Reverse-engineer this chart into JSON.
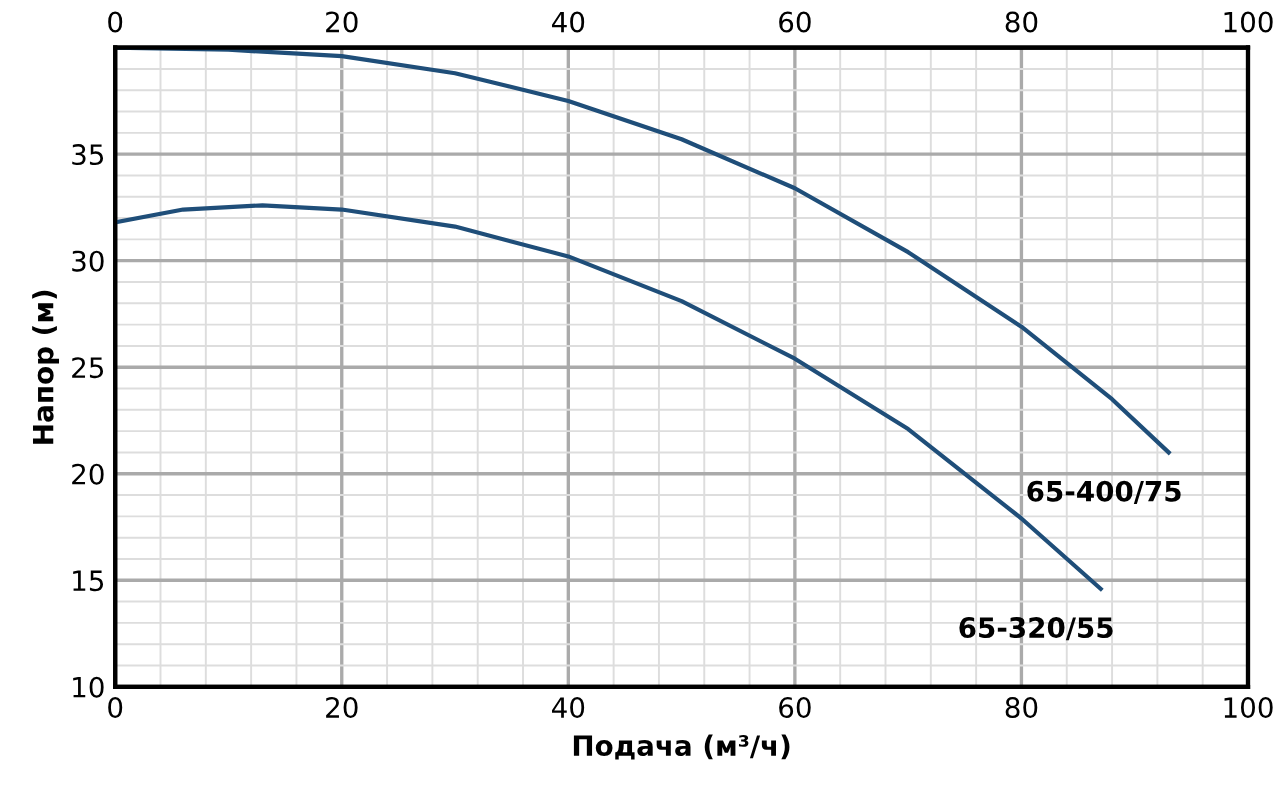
{
  "chart_data": {
    "type": "line",
    "xlabel": "Подача (м³/ч)",
    "ylabel": "Напор (м)",
    "series": [
      {
        "name": "65-400/75",
        "color": "#1f4e79",
        "x": [
          0,
          10,
          20,
          30,
          40,
          50,
          60,
          70,
          80,
          88,
          93
        ],
        "values": [
          40.0,
          39.9,
          39.6,
          38.8,
          37.5,
          35.7,
          33.4,
          30.4,
          26.9,
          23.5,
          21.0
        ]
      },
      {
        "name": "65-320/55",
        "color": "#1f4e79",
        "x": [
          0,
          6,
          13,
          20,
          30,
          40,
          50,
          60,
          70,
          80,
          87
        ],
        "values": [
          31.8,
          32.4,
          32.6,
          32.4,
          31.6,
          30.2,
          28.1,
          25.4,
          22.1,
          17.9,
          14.6
        ]
      }
    ],
    "xlim": [
      0,
      100
    ],
    "xticks": [
      0,
      20,
      40,
      60,
      80,
      100
    ],
    "x2lim": [
      0,
      100
    ],
    "x2ticks": [
      0,
      20,
      40,
      60,
      80,
      100
    ],
    "ylim": [
      10,
      40
    ],
    "yticks": [
      10,
      15,
      20,
      25,
      30,
      35
    ],
    "grid": true,
    "legend": false,
    "marker": "none",
    "line_style": "solid"
  }
}
